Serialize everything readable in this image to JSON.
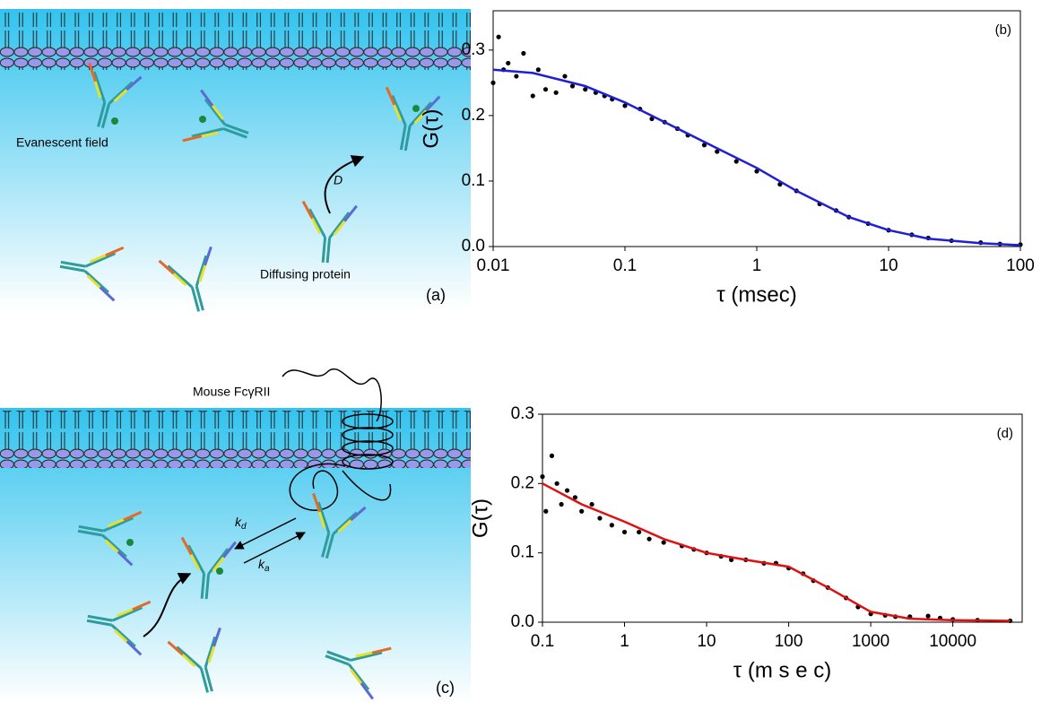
{
  "diagrams": {
    "a": {
      "labels": [
        "Evanescent field",
        "Diffusing protein"
      ],
      "symbol": "D",
      "panel": "(a)"
    },
    "c": {
      "receptor": "Mouse FcγRII",
      "rate_constants": [
        {
          "symbol": "k",
          "subscript": "d"
        },
        {
          "symbol": "k",
          "subscript": "a"
        }
      ],
      "panel": "(c)"
    }
  },
  "chart_data": [
    {
      "type": "scatter",
      "panel": "(b)",
      "ylabel": "G(τ)",
      "xlabel": "τ (msec)",
      "xlog": true,
      "xlim": [
        0.01,
        100
      ],
      "xticks": [
        0.01,
        0.1,
        1,
        10,
        100
      ],
      "ylim": [
        0,
        0.36
      ],
      "yticks": [
        {
          "value": 0,
          "label": "0.0"
        },
        0.1,
        0.2,
        0.3
      ],
      "series": [
        {
          "type": "scatter",
          "color": "#000000",
          "x": [
            0.01,
            0.011,
            0.012,
            0.013,
            0.015,
            0.017,
            0.02,
            0.022,
            0.025,
            0.03,
            0.035,
            0.04,
            0.05,
            0.06,
            0.07,
            0.08,
            0.1,
            0.13,
            0.16,
            0.2,
            0.25,
            0.3,
            0.4,
            0.5,
            0.7,
            1,
            1.5,
            2,
            3,
            4,
            5,
            7,
            10,
            15,
            20,
            30,
            50,
            70,
            100
          ],
          "values": [
            0.25,
            0.32,
            0.27,
            0.28,
            0.26,
            0.295,
            0.23,
            0.27,
            0.24,
            0.235,
            0.26,
            0.245,
            0.24,
            0.235,
            0.23,
            0.225,
            0.215,
            0.21,
            0.195,
            0.19,
            0.18,
            0.17,
            0.155,
            0.145,
            0.13,
            0.115,
            0.095,
            0.085,
            0.065,
            0.055,
            0.045,
            0.035,
            0.025,
            0.018,
            0.013,
            0.009,
            0.006,
            0.004,
            0.003
          ]
        },
        {
          "type": "line",
          "color": "#1f1fd6",
          "x": [
            0.01,
            0.02,
            0.05,
            0.1,
            0.2,
            0.5,
            1,
            2,
            5,
            10,
            20,
            50,
            100
          ],
          "values": [
            0.27,
            0.265,
            0.245,
            0.22,
            0.19,
            0.15,
            0.12,
            0.085,
            0.045,
            0.025,
            0.012,
            0.005,
            0.002
          ]
        }
      ]
    },
    {
      "type": "scatter",
      "panel": "(d)",
      "ylabel": "G(τ)",
      "xlabel": "τ (m s e c)",
      "xlog": true,
      "xlim": [
        0.1,
        70000
      ],
      "xticks": [
        0.1,
        1,
        10,
        100,
        1000,
        10000
      ],
      "ylim": [
        0,
        0.3
      ],
      "yticks": [
        {
          "value": 0,
          "label": "0.0"
        },
        0.1,
        0.2,
        0.3
      ],
      "series": [
        {
          "type": "scatter",
          "color": "#000000",
          "x": [
            0.1,
            0.11,
            0.13,
            0.15,
            0.17,
            0.2,
            0.25,
            0.3,
            0.4,
            0.5,
            0.7,
            1,
            1.5,
            2,
            3,
            5,
            7,
            10,
            15,
            20,
            30,
            50,
            70,
            100,
            150,
            200,
            300,
            500,
            700,
            1000,
            1500,
            2000,
            3000,
            5000,
            7000,
            10000,
            20000,
            50000
          ],
          "values": [
            0.21,
            0.16,
            0.24,
            0.2,
            0.17,
            0.19,
            0.18,
            0.16,
            0.17,
            0.15,
            0.14,
            0.13,
            0.13,
            0.12,
            0.115,
            0.11,
            0.105,
            0.1,
            0.095,
            0.09,
            0.09,
            0.085,
            0.085,
            0.078,
            0.07,
            0.06,
            0.05,
            0.035,
            0.022,
            0.012,
            0.01,
            0.008,
            0.008,
            0.009,
            0.006,
            0.004,
            0.003,
            0.002
          ]
        },
        {
          "type": "line",
          "color": "#e01010",
          "x": [
            0.1,
            0.3,
            1,
            3,
            10,
            30,
            100,
            300,
            1000,
            3000,
            10000,
            50000
          ],
          "values": [
            0.2,
            0.17,
            0.145,
            0.12,
            0.1,
            0.09,
            0.08,
            0.05,
            0.015,
            0.005,
            0.003,
            0.002
          ]
        }
      ]
    }
  ]
}
